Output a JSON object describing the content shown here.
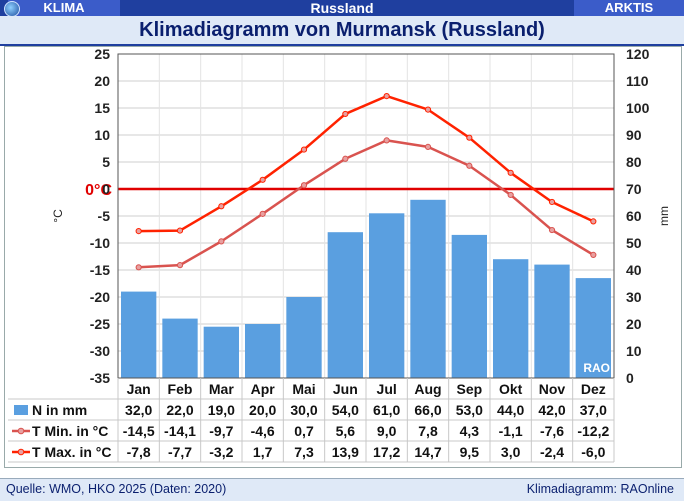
{
  "header": {
    "left_tab": "KLIMA",
    "center_tab": "Russland",
    "right_tab": "ARKTIS",
    "title": "Klimadiagramm von Murmansk (Russland)"
  },
  "footer": {
    "source": "Quelle: WMO, HKO 2025 (Daten: 2020)",
    "credit": "Klimadiagramm: RAOnline"
  },
  "colors": {
    "precip": "#5a9fe0",
    "tmin": "#d9534f",
    "tmax": "#ff2200",
    "zero_line": "#e00000"
  },
  "chart_data": {
    "type": "bar",
    "categories": [
      "Jan",
      "Feb",
      "Mar",
      "Apr",
      "Mai",
      "Jun",
      "Jul",
      "Aug",
      "Sep",
      "Okt",
      "Nov",
      "Dez"
    ],
    "left_axis": {
      "label": "°C",
      "ylim": [
        -35,
        25
      ],
      "ticks": [
        25,
        20,
        15,
        10,
        5,
        0,
        -5,
        -10,
        -15,
        -20,
        -25,
        -30,
        -35
      ]
    },
    "right_axis": {
      "label": "mm",
      "ylim": [
        0,
        120
      ],
      "ticks": [
        120,
        110,
        100,
        90,
        80,
        70,
        60,
        50,
        40,
        30,
        20,
        10,
        0
      ]
    },
    "zero_label": "0°C",
    "watermark": "RAO",
    "series": [
      {
        "name": "N in mm",
        "type": "bar",
        "axis": "right",
        "values": [
          32.0,
          22.0,
          19.0,
          20.0,
          30.0,
          54.0,
          61.0,
          66.0,
          53.0,
          44.0,
          42.0,
          37.0
        ],
        "labels": [
          "32,0",
          "22,0",
          "19,0",
          "20,0",
          "30,0",
          "54,0",
          "61,0",
          "66,0",
          "53,0",
          "44,0",
          "42,0",
          "37,0"
        ]
      },
      {
        "name": "T Min. in °C",
        "type": "line",
        "axis": "left",
        "values": [
          -14.5,
          -14.1,
          -9.7,
          -4.6,
          0.7,
          5.6,
          9.0,
          7.8,
          4.3,
          -1.1,
          -7.6,
          -12.2
        ],
        "labels": [
          "-14,5",
          "-14,1",
          "-9,7",
          "-4,6",
          "0,7",
          "5,6",
          "9,0",
          "7,8",
          "4,3",
          "-1,1",
          "-7,6",
          "-12,2"
        ]
      },
      {
        "name": "T Max. in °C",
        "type": "line",
        "axis": "left",
        "values": [
          -7.8,
          -7.7,
          -3.2,
          1.7,
          7.3,
          13.9,
          17.2,
          14.7,
          9.5,
          3.0,
          -2.4,
          -6.0
        ],
        "labels": [
          "-7,8",
          "-7,7",
          "-3,2",
          "1,7",
          "7,3",
          "13,9",
          "17,2",
          "14,7",
          "9,5",
          "3,0",
          "-2,4",
          "-6,0"
        ]
      }
    ]
  }
}
